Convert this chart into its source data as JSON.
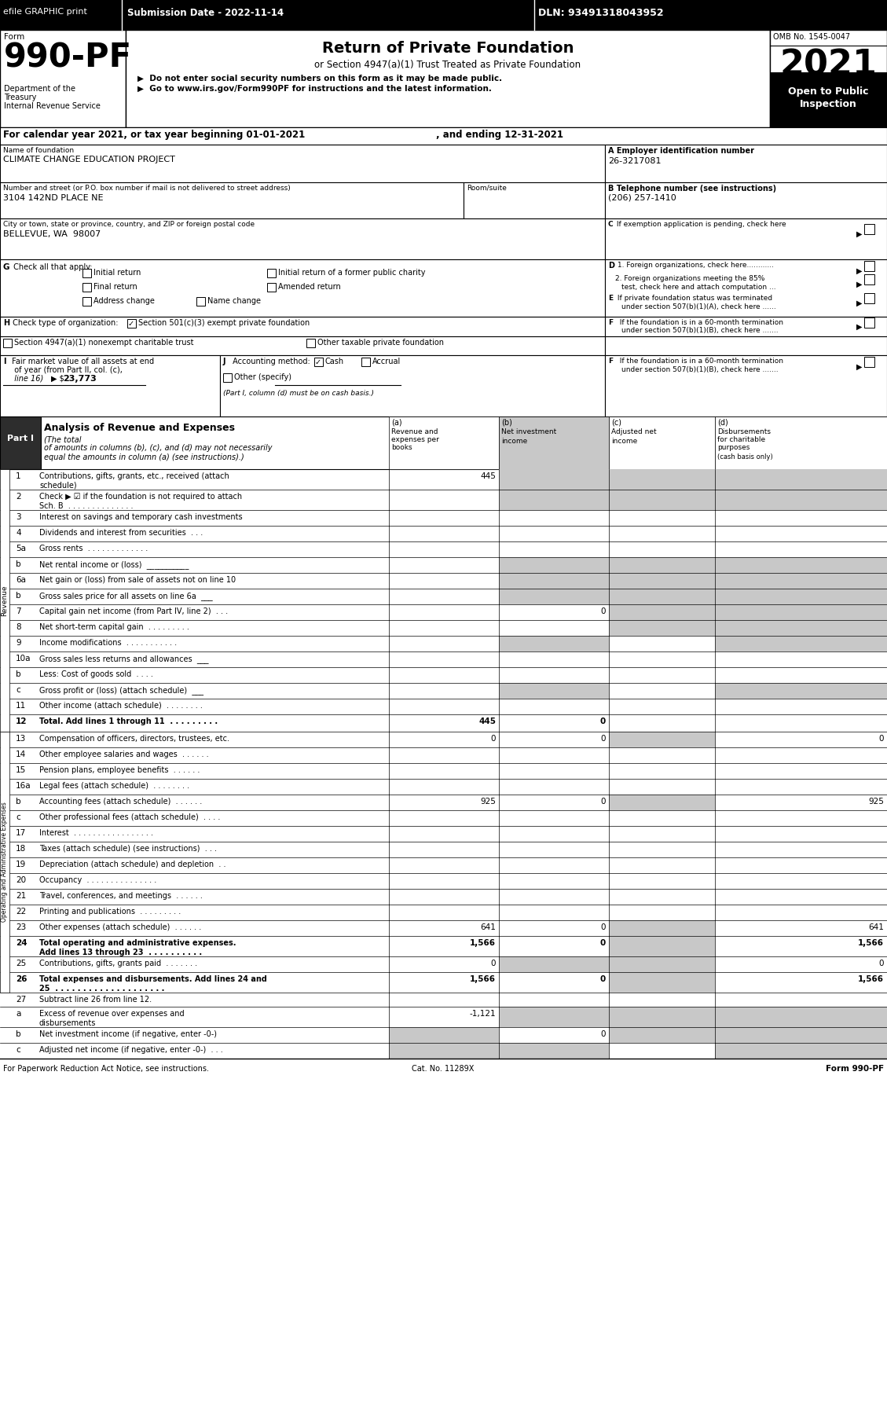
{
  "efile_text": "efile GRAPHIC print",
  "submission_date": "Submission Date - 2022-11-14",
  "dln": "DLN: 93491318043952",
  "form_label": "Form",
  "form_number": "990-PF",
  "dept1": "Department of the",
  "dept2": "Treasury",
  "dept3": "Internal Revenue Service",
  "title_main": "Return of Private Foundation",
  "title_sub": "or Section 4947(a)(1) Trust Treated as Private Foundation",
  "bullet1": "▶  Do not enter social security numbers on this form as it may be made public.",
  "bullet2": "▶  Go to www.irs.gov/Form990PF for instructions and the latest information.",
  "omb": "OMB No. 1545-0047",
  "year": "2021",
  "open_public": "Open to Public",
  "inspection": "Inspection",
  "cal_year": "For calendar year 2021, or tax year beginning 01-01-2021",
  "ending": ", and ending 12-31-2021",
  "name_label": "Name of foundation",
  "name_value": "CLIMATE CHANGE EDUCATION PROJECT",
  "ein_label": "A Employer identification number",
  "ein_value": "26-3217081",
  "address_label": "Number and street (or P.O. box number if mail is not delivered to street address)",
  "room_label": "Room/suite",
  "address_value": "3104 142ND PLACE NE",
  "phone_label": "B Telephone number (see instructions)",
  "phone_value": "(206) 257-1410",
  "city_label": "City or town, state or province, country, and ZIP or foreign postal code",
  "city_value": "BELLEVUE, WA  98007",
  "g_initial": "Initial return",
  "g_initial_former": "Initial return of a former public charity",
  "g_final": "Final return",
  "g_amended": "Amended return",
  "g_address": "Address change",
  "g_name": "Name change",
  "h_501c3": "Section 501(c)(3) exempt private foundation",
  "h_4947": "Section 4947(a)(1) nonexempt charitable trust",
  "h_other_taxable": "Other taxable private foundation",
  "i_value": "23,773",
  "j_cash": "Cash",
  "j_accrual": "Accrual",
  "j_other": "Other (specify)",
  "j_note": "(Part I, column (d) must be on cash basis.)",
  "revenue_rows": [
    {
      "num": "1",
      "desc": "Contributions, gifts, grants, etc., received (attach\nschedule)",
      "a": "445",
      "b": "",
      "c": "",
      "d": "",
      "b_gray": true,
      "c_gray": true,
      "d_gray": true,
      "rh": 26
    },
    {
      "num": "2",
      "desc": "Check ▶ ☑ if the foundation is not required to attach\nSch. B  . . . . . . . . . . . . . .",
      "a": "",
      "b": "",
      "c": "",
      "d": "",
      "b_gray": true,
      "c_gray": true,
      "d_gray": true,
      "rh": 26
    },
    {
      "num": "3",
      "desc": "Interest on savings and temporary cash investments",
      "a": "",
      "b": "",
      "c": "",
      "d": "",
      "rh": 20
    },
    {
      "num": "4",
      "desc": "Dividends and interest from securities  . . .",
      "a": "",
      "b": "",
      "c": "",
      "d": "",
      "rh": 20
    },
    {
      "num": "5a",
      "desc": "Gross rents  . . . . . . . . . . . . .",
      "a": "",
      "b": "",
      "c": "",
      "d": "",
      "rh": 20
    },
    {
      "num": "b",
      "desc": "Net rental income or (loss)  ___________",
      "a": "",
      "b": "",
      "c": "",
      "d": "",
      "b_gray": true,
      "c_gray": true,
      "d_gray": true,
      "rh": 20
    },
    {
      "num": "6a",
      "desc": "Net gain or (loss) from sale of assets not on line 10",
      "a": "",
      "b": "",
      "c": "",
      "d": "",
      "b_gray": true,
      "c_gray": true,
      "d_gray": true,
      "rh": 20
    },
    {
      "num": "b",
      "desc": "Gross sales price for all assets on line 6a  ___",
      "a": "",
      "b": "",
      "c": "",
      "d": "",
      "b_gray": true,
      "c_gray": true,
      "d_gray": true,
      "rh": 20
    },
    {
      "num": "7",
      "desc": "Capital gain net income (from Part IV, line 2)  . . .",
      "a": "",
      "b": "0",
      "c": "",
      "d": "",
      "c_gray": true,
      "d_gray": true,
      "rh": 20
    },
    {
      "num": "8",
      "desc": "Net short-term capital gain  . . . . . . . . .",
      "a": "",
      "b": "",
      "c": "",
      "d": "",
      "c_gray": true,
      "d_gray": true,
      "rh": 20
    },
    {
      "num": "9",
      "desc": "Income modifications  . . . . . . . . . . .",
      "a": "",
      "b": "",
      "c": "",
      "d": "",
      "b_gray": true,
      "d_gray": true,
      "rh": 20
    },
    {
      "num": "10a",
      "desc": "Gross sales less returns and allowances  ___",
      "a": "",
      "b": "",
      "c": "",
      "d": "",
      "rh": 20
    },
    {
      "num": "b",
      "desc": "Less: Cost of goods sold  . . . .",
      "a": "",
      "b": "",
      "c": "",
      "d": "",
      "rh": 20
    },
    {
      "num": "c",
      "desc": "Gross profit or (loss) (attach schedule)  ___",
      "a": "",
      "b": "",
      "c": "",
      "d": "",
      "b_gray": true,
      "d_gray": true,
      "rh": 20
    },
    {
      "num": "11",
      "desc": "Other income (attach schedule)  . . . . . . . .",
      "a": "",
      "b": "",
      "c": "",
      "d": "",
      "rh": 20
    },
    {
      "num": "12",
      "desc": "Total. Add lines 1 through 11  . . . . . . . . .",
      "a": "445",
      "b": "0",
      "c": "",
      "d": "",
      "bold": true,
      "rh": 22
    }
  ],
  "expense_rows": [
    {
      "num": "13",
      "desc": "Compensation of officers, directors, trustees, etc.",
      "a": "0",
      "b": "0",
      "c": "",
      "d": "0",
      "c_gray": true,
      "rh": 20
    },
    {
      "num": "14",
      "desc": "Other employee salaries and wages  . . . . . .",
      "a": "",
      "b": "",
      "c": "",
      "d": "",
      "rh": 20
    },
    {
      "num": "15",
      "desc": "Pension plans, employee benefits  . . . . . .",
      "a": "",
      "b": "",
      "c": "",
      "d": "",
      "rh": 20
    },
    {
      "num": "16a",
      "desc": "Legal fees (attach schedule)  . . . . . . . .",
      "a": "",
      "b": "",
      "c": "",
      "d": "",
      "rh": 20
    },
    {
      "num": "b",
      "desc": "Accounting fees (attach schedule)  . . . . . .",
      "a": "925",
      "b": "0",
      "c": "",
      "d": "925",
      "c_gray": true,
      "rh": 20
    },
    {
      "num": "c",
      "desc": "Other professional fees (attach schedule)  . . . .",
      "a": "",
      "b": "",
      "c": "",
      "d": "",
      "rh": 20
    },
    {
      "num": "17",
      "desc": "Interest  . . . . . . . . . . . . . . . . .",
      "a": "",
      "b": "",
      "c": "",
      "d": "",
      "rh": 20
    },
    {
      "num": "18",
      "desc": "Taxes (attach schedule) (see instructions)  . . .",
      "a": "",
      "b": "",
      "c": "",
      "d": "",
      "rh": 20
    },
    {
      "num": "19",
      "desc": "Depreciation (attach schedule) and depletion  . .",
      "a": "",
      "b": "",
      "c": "",
      "d": "",
      "rh": 20
    },
    {
      "num": "20",
      "desc": "Occupancy  . . . . . . . . . . . . . . .",
      "a": "",
      "b": "",
      "c": "",
      "d": "",
      "rh": 20
    },
    {
      "num": "21",
      "desc": "Travel, conferences, and meetings  . . . . . .",
      "a": "",
      "b": "",
      "c": "",
      "d": "",
      "rh": 20
    },
    {
      "num": "22",
      "desc": "Printing and publications  . . . . . . . . .",
      "a": "",
      "b": "",
      "c": "",
      "d": "",
      "rh": 20
    },
    {
      "num": "23",
      "desc": "Other expenses (attach schedule)  . . . . . .",
      "a": "641",
      "b": "0",
      "c": "",
      "d": "641",
      "c_gray": true,
      "rh": 20
    },
    {
      "num": "24",
      "desc": "Total operating and administrative expenses.\nAdd lines 13 through 23  . . . . . . . . . .",
      "a": "1,566",
      "b": "0",
      "c": "",
      "d": "1,566",
      "bold": true,
      "c_gray": true,
      "rh": 26
    },
    {
      "num": "25",
      "desc": "Contributions, gifts, grants paid  . . . . . . .",
      "a": "0",
      "b": "",
      "c": "",
      "d": "0",
      "b_gray": true,
      "c_gray": true,
      "rh": 20
    },
    {
      "num": "26",
      "desc": "Total expenses and disbursements. Add lines 24 and\n25  . . . . . . . . . . . . . . . . . . . .",
      "a": "1,566",
      "b": "0",
      "c": "",
      "d": "1,566",
      "bold": true,
      "c_gray": true,
      "rh": 26
    }
  ],
  "bottom_rows": [
    {
      "num": "27",
      "desc": "Subtract line 26 from line 12.",
      "a": "",
      "b": "",
      "c": "",
      "d": "",
      "rh": 18
    },
    {
      "num": "a",
      "desc": "Excess of revenue over expenses and\ndisbursements",
      "a": "-1,121",
      "b": "",
      "c": "",
      "d": "",
      "b_gray": true,
      "c_gray": true,
      "d_gray": true,
      "rh": 26
    },
    {
      "num": "b",
      "desc": "Net investment income (if negative, enter -0-)",
      "a": "",
      "b": "0",
      "c": "",
      "d": "",
      "a_gray": true,
      "c_gray": true,
      "d_gray": true,
      "rh": 20
    },
    {
      "num": "c",
      "desc": "Adjusted net income (if negative, enter -0-)  . . .",
      "a": "",
      "b": "",
      "c": "",
      "d": "",
      "a_gray": true,
      "b_gray": true,
      "d_gray": true,
      "rh": 20
    }
  ],
  "footer_left": "For Paperwork Reduction Act Notice, see instructions.",
  "footer_cat": "Cat. No. 11289X",
  "footer_right": "Form 990-PF",
  "gray_color": "#c8c8c8",
  "dark_header": "#000000",
  "part1_dark": "#2a2a2a"
}
